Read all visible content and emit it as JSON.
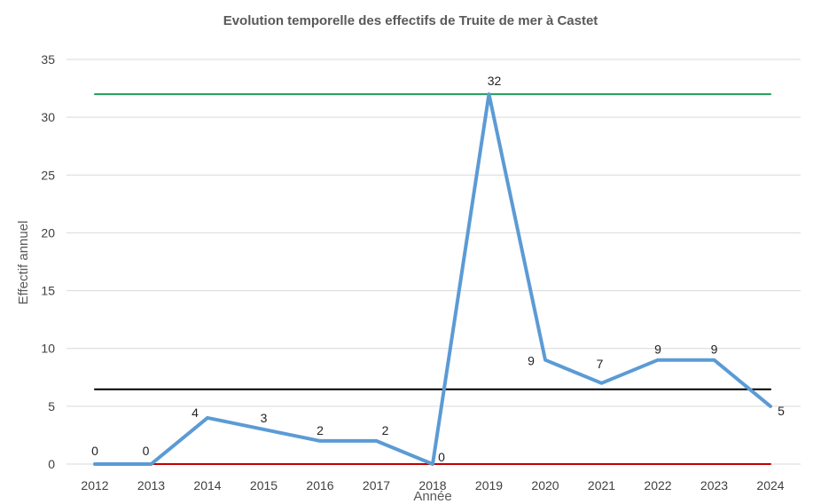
{
  "chart_data": {
    "type": "line",
    "title": "Evolution temporelle des effectifs de Truite de mer à Castet",
    "xlabel": "Année",
    "ylabel": "Effectif annuel",
    "categories": [
      "2012",
      "2013",
      "2014",
      "2015",
      "2016",
      "2017",
      "2018",
      "2019",
      "2020",
      "2021",
      "2022",
      "2023",
      "2024"
    ],
    "ylim": [
      0,
      35
    ],
    "yticks": [
      0,
      5,
      10,
      15,
      20,
      25,
      30,
      35
    ],
    "grid": true,
    "series": [
      {
        "values": [
          0,
          0,
          4,
          3,
          2,
          2,
          0,
          32,
          9,
          7,
          9,
          9,
          5
        ],
        "color": "#5B9BD5",
        "data_labels": true
      },
      {
        "values": [
          32,
          32,
          32,
          32,
          32,
          32,
          32,
          32,
          32,
          32,
          32,
          32,
          32
        ],
        "color": "#1E9E5A",
        "data_labels": false
      },
      {
        "values": [
          6.46,
          6.46,
          6.46,
          6.46,
          6.46,
          6.46,
          6.46,
          6.46,
          6.46,
          6.46,
          6.46,
          6.46,
          6.46
        ],
        "color": "#000000",
        "data_labels": false
      },
      {
        "values": [
          0,
          0,
          0,
          0,
          0,
          0,
          0,
          0,
          0,
          0,
          0,
          0,
          0
        ],
        "color": "#C00000",
        "data_labels": false
      }
    ]
  }
}
